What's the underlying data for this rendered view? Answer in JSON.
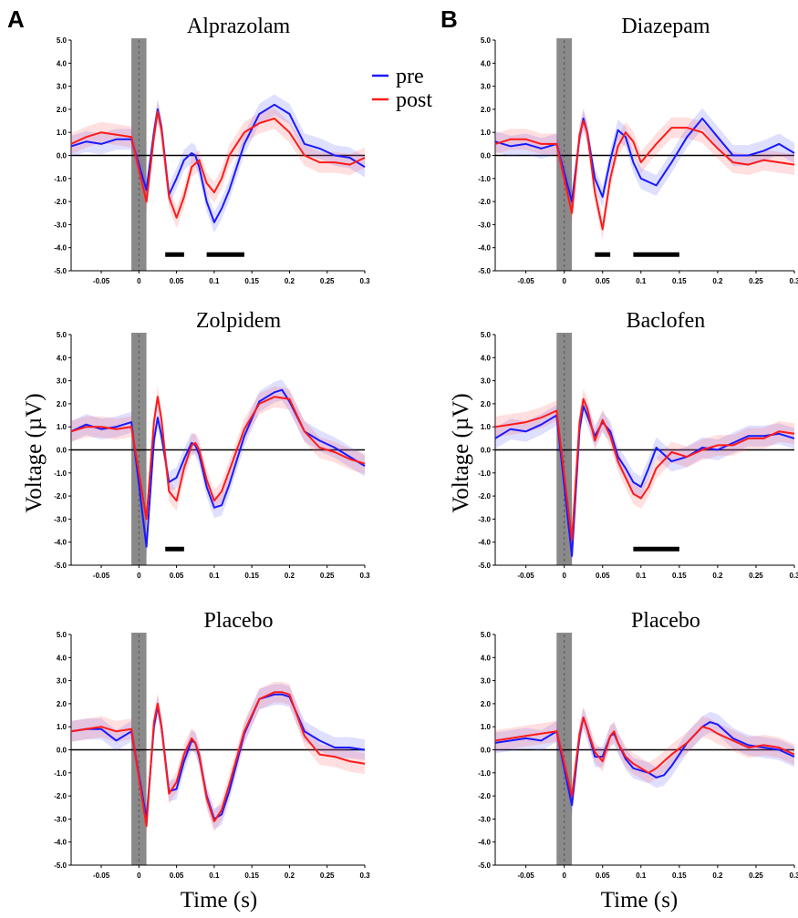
{
  "panel_labels": [
    "A",
    "B"
  ],
  "legend": {
    "pre_label": "pre",
    "post_label": "post",
    "pre_color": "#1a1aff",
    "post_color": "#ff1a1a"
  },
  "ylabel": "Voltage (µV)",
  "xlabel": "Time (s)",
  "x_tick_labels": [
    "-0.05",
    "0",
    "0.05",
    "0.1",
    "0.15",
    "0.2",
    "0.25",
    "0.3"
  ],
  "y_tick_labels": [
    "5.0",
    "4.0",
    "3.0",
    "2.0",
    "1.0",
    "0.0",
    "-1.0",
    "-2.0",
    "-3.0",
    "-4.0",
    "-5.0"
  ],
  "chart_data": [
    {
      "type": "line",
      "title": "Alprazolam",
      "xlim": [
        -0.09,
        0.3
      ],
      "ylim": [
        -5,
        5
      ],
      "stim_artifact": [
        -0.01,
        0.01
      ],
      "significance_bars": [
        [
          0.035,
          0.06
        ],
        [
          0.09,
          0.14
        ]
      ],
      "series": [
        {
          "name": "pre",
          "x": [
            -0.09,
            -0.07,
            -0.05,
            -0.03,
            -0.01,
            0.01,
            0.02,
            0.025,
            0.03,
            0.04,
            0.05,
            0.06,
            0.07,
            0.075,
            0.08,
            0.09,
            0.1,
            0.11,
            0.12,
            0.14,
            0.16,
            0.18,
            0.2,
            0.22,
            0.24,
            0.26,
            0.28,
            0.3
          ],
          "y": [
            0.4,
            0.6,
            0.5,
            0.7,
            0.7,
            -1.5,
            1.0,
            2.0,
            1.2,
            -1.7,
            -1.0,
            -0.2,
            0.1,
            0.0,
            -0.5,
            -2.0,
            -2.9,
            -2.3,
            -1.5,
            0.5,
            1.8,
            2.2,
            1.8,
            0.5,
            0.3,
            0.0,
            -0.1,
            -0.5
          ]
        },
        {
          "name": "post",
          "x": [
            -0.09,
            -0.07,
            -0.05,
            -0.03,
            -0.01,
            0.01,
            0.02,
            0.025,
            0.03,
            0.04,
            0.05,
            0.06,
            0.07,
            0.08,
            0.09,
            0.1,
            0.11,
            0.12,
            0.14,
            0.16,
            0.18,
            0.2,
            0.22,
            0.24,
            0.26,
            0.28,
            0.3
          ],
          "y": [
            0.5,
            0.8,
            1.0,
            0.9,
            0.8,
            -2.0,
            0.8,
            1.9,
            1.1,
            -1.8,
            -2.7,
            -1.8,
            -0.5,
            -0.2,
            -1.2,
            -1.6,
            -1.0,
            0.0,
            1.0,
            1.4,
            1.6,
            1.0,
            0.0,
            -0.3,
            -0.3,
            -0.4,
            -0.1
          ]
        }
      ]
    },
    {
      "type": "line",
      "title": "Diazepam",
      "xlim": [
        -0.09,
        0.3
      ],
      "ylim": [
        -5,
        5
      ],
      "stim_artifact": [
        -0.01,
        0.01
      ],
      "significance_bars": [
        [
          0.04,
          0.06
        ],
        [
          0.09,
          0.15
        ]
      ],
      "series": [
        {
          "name": "pre",
          "x": [
            -0.09,
            -0.07,
            -0.05,
            -0.03,
            -0.01,
            0.01,
            0.02,
            0.025,
            0.03,
            0.04,
            0.05,
            0.06,
            0.07,
            0.08,
            0.09,
            0.1,
            0.12,
            0.14,
            0.16,
            0.18,
            0.2,
            0.22,
            0.24,
            0.26,
            0.28,
            0.3
          ],
          "y": [
            0.6,
            0.4,
            0.5,
            0.3,
            0.5,
            -2.0,
            0.8,
            1.6,
            1.0,
            -1.0,
            -1.8,
            -0.2,
            1.1,
            0.8,
            -0.3,
            -1.0,
            -1.3,
            -0.3,
            0.8,
            1.6,
            0.8,
            0.0,
            0.0,
            0.2,
            0.5,
            0.1
          ]
        },
        {
          "name": "post",
          "x": [
            -0.09,
            -0.07,
            -0.05,
            -0.03,
            -0.01,
            0.01,
            0.02,
            0.025,
            0.03,
            0.04,
            0.05,
            0.06,
            0.07,
            0.08,
            0.09,
            0.1,
            0.12,
            0.14,
            0.16,
            0.18,
            0.2,
            0.22,
            0.24,
            0.26,
            0.28,
            0.3
          ],
          "y": [
            0.5,
            0.7,
            0.7,
            0.5,
            0.5,
            -2.5,
            0.9,
            1.5,
            1.0,
            -1.6,
            -3.2,
            -1.0,
            0.4,
            1.0,
            0.6,
            -0.3,
            0.5,
            1.2,
            1.2,
            1.0,
            0.3,
            -0.3,
            -0.4,
            -0.2,
            -0.3,
            -0.4
          ]
        }
      ]
    },
    {
      "type": "line",
      "title": "Zolpidem",
      "xlim": [
        -0.09,
        0.3
      ],
      "ylim": [
        -5,
        5
      ],
      "stim_artifact": [
        -0.01,
        0.01
      ],
      "significance_bars": [
        [
          0.035,
          0.06
        ]
      ],
      "series": [
        {
          "name": "pre",
          "x": [
            -0.09,
            -0.07,
            -0.05,
            -0.03,
            -0.01,
            0.01,
            0.02,
            0.025,
            0.03,
            0.04,
            0.05,
            0.06,
            0.07,
            0.075,
            0.08,
            0.09,
            0.1,
            0.11,
            0.12,
            0.14,
            0.16,
            0.18,
            0.19,
            0.2,
            0.22,
            0.24,
            0.26,
            0.28,
            0.3
          ],
          "y": [
            0.8,
            1.1,
            0.9,
            1.0,
            1.2,
            -4.2,
            0.4,
            1.4,
            0.6,
            -1.4,
            -1.2,
            -0.4,
            0.3,
            0.2,
            -0.2,
            -1.6,
            -2.5,
            -2.4,
            -1.5,
            0.6,
            2.1,
            2.5,
            2.6,
            2.1,
            0.8,
            0.4,
            0.1,
            -0.3,
            -0.7
          ]
        },
        {
          "name": "post",
          "x": [
            -0.09,
            -0.07,
            -0.05,
            -0.03,
            -0.01,
            0.01,
            0.02,
            0.025,
            0.03,
            0.04,
            0.05,
            0.06,
            0.07,
            0.075,
            0.08,
            0.09,
            0.1,
            0.11,
            0.12,
            0.14,
            0.16,
            0.18,
            0.2,
            0.22,
            0.24,
            0.26,
            0.28,
            0.3
          ],
          "y": [
            0.8,
            1.0,
            1.0,
            0.9,
            1.0,
            -3.0,
            1.2,
            2.3,
            1.3,
            -1.8,
            -2.2,
            -0.8,
            0.2,
            0.3,
            0.0,
            -1.3,
            -2.2,
            -1.8,
            -0.9,
            0.9,
            2.0,
            2.3,
            2.2,
            0.8,
            0.1,
            -0.1,
            -0.4,
            -0.6
          ]
        }
      ]
    },
    {
      "type": "line",
      "title": "Baclofen",
      "xlim": [
        -0.09,
        0.3
      ],
      "ylim": [
        -5,
        5
      ],
      "stim_artifact": [
        -0.01,
        0.01
      ],
      "significance_bars": [
        [
          0.09,
          0.15
        ]
      ],
      "series": [
        {
          "name": "pre",
          "x": [
            -0.09,
            -0.07,
            -0.05,
            -0.03,
            -0.01,
            0.01,
            0.02,
            0.025,
            0.03,
            0.04,
            0.05,
            0.06,
            0.07,
            0.08,
            0.09,
            0.1,
            0.11,
            0.12,
            0.14,
            0.16,
            0.18,
            0.2,
            0.22,
            0.24,
            0.26,
            0.28,
            0.3
          ],
          "y": [
            0.5,
            0.9,
            0.8,
            1.1,
            1.5,
            -4.6,
            0.9,
            1.9,
            1.5,
            0.6,
            1.2,
            0.8,
            -0.3,
            -0.8,
            -1.4,
            -1.6,
            -0.8,
            0.1,
            -0.5,
            -0.3,
            0.1,
            0.0,
            0.3,
            0.6,
            0.6,
            0.7,
            0.5
          ]
        },
        {
          "name": "post",
          "x": [
            -0.09,
            -0.07,
            -0.05,
            -0.03,
            -0.01,
            0.01,
            0.02,
            0.025,
            0.03,
            0.04,
            0.05,
            0.06,
            0.07,
            0.08,
            0.09,
            0.1,
            0.11,
            0.12,
            0.14,
            0.16,
            0.18,
            0.2,
            0.22,
            0.24,
            0.26,
            0.28,
            0.3
          ],
          "y": [
            1.0,
            1.1,
            1.2,
            1.4,
            1.7,
            -3.9,
            1.2,
            2.2,
            1.8,
            0.4,
            1.3,
            0.6,
            -0.5,
            -1.2,
            -1.9,
            -2.1,
            -1.6,
            -0.8,
            -0.1,
            -0.3,
            0.0,
            0.2,
            0.2,
            0.5,
            0.5,
            0.8,
            0.7
          ]
        }
      ]
    },
    {
      "type": "line",
      "title": "Placebo",
      "xlim": [
        -0.09,
        0.3
      ],
      "ylim": [
        -5,
        5
      ],
      "stim_artifact": [
        -0.01,
        0.01
      ],
      "significance_bars": [],
      "series": [
        {
          "name": "pre",
          "x": [
            -0.09,
            -0.07,
            -0.05,
            -0.03,
            -0.01,
            0.01,
            0.02,
            0.025,
            0.03,
            0.04,
            0.05,
            0.06,
            0.07,
            0.075,
            0.08,
            0.09,
            0.1,
            0.11,
            0.12,
            0.14,
            0.16,
            0.18,
            0.19,
            0.2,
            0.22,
            0.24,
            0.26,
            0.28,
            0.3
          ],
          "y": [
            0.8,
            0.9,
            0.9,
            0.4,
            0.8,
            -3.0,
            1.0,
            1.9,
            1.0,
            -1.8,
            -1.7,
            -0.5,
            0.4,
            0.3,
            -0.3,
            -2.0,
            -3.0,
            -2.8,
            -1.8,
            0.7,
            2.2,
            2.4,
            2.4,
            2.3,
            0.8,
            0.4,
            0.1,
            0.1,
            0.0
          ]
        },
        {
          "name": "post",
          "x": [
            -0.09,
            -0.07,
            -0.05,
            -0.03,
            -0.01,
            0.01,
            0.02,
            0.025,
            0.03,
            0.04,
            0.05,
            0.06,
            0.07,
            0.075,
            0.08,
            0.09,
            0.1,
            0.11,
            0.12,
            0.14,
            0.16,
            0.18,
            0.19,
            0.2,
            0.22,
            0.24,
            0.26,
            0.28,
            0.3
          ],
          "y": [
            0.8,
            0.9,
            1.0,
            0.8,
            0.9,
            -3.3,
            1.2,
            2.0,
            1.0,
            -1.9,
            -1.4,
            -0.2,
            0.5,
            0.3,
            -0.2,
            -2.1,
            -3.1,
            -2.6,
            -1.5,
            0.8,
            2.2,
            2.5,
            2.5,
            2.4,
            0.6,
            -0.2,
            -0.3,
            -0.5,
            -0.6
          ]
        }
      ]
    },
    {
      "type": "line",
      "title": "Placebo",
      "xlim": [
        -0.09,
        0.3
      ],
      "ylim": [
        -5,
        5
      ],
      "stim_artifact": [
        -0.01,
        0.01
      ],
      "significance_bars": [],
      "series": [
        {
          "name": "pre",
          "x": [
            -0.09,
            -0.07,
            -0.05,
            -0.03,
            -0.01,
            0.01,
            0.02,
            0.025,
            0.03,
            0.04,
            0.05,
            0.06,
            0.065,
            0.07,
            0.08,
            0.09,
            0.1,
            0.11,
            0.12,
            0.13,
            0.14,
            0.16,
            0.18,
            0.19,
            0.2,
            0.22,
            0.24,
            0.26,
            0.28,
            0.3
          ],
          "y": [
            0.3,
            0.4,
            0.5,
            0.4,
            0.8,
            -2.4,
            0.6,
            1.4,
            0.9,
            -0.3,
            -0.3,
            0.6,
            0.7,
            0.3,
            -0.4,
            -0.8,
            -0.9,
            -1.0,
            -1.2,
            -1.1,
            -0.7,
            0.3,
            1.0,
            1.2,
            1.1,
            0.5,
            0.2,
            0.1,
            0.0,
            -0.3
          ]
        },
        {
          "name": "post",
          "x": [
            -0.09,
            -0.07,
            -0.05,
            -0.03,
            -0.01,
            0.01,
            0.02,
            0.025,
            0.03,
            0.04,
            0.05,
            0.06,
            0.065,
            0.07,
            0.08,
            0.09,
            0.1,
            0.11,
            0.12,
            0.13,
            0.14,
            0.16,
            0.18,
            0.19,
            0.2,
            0.22,
            0.24,
            0.26,
            0.28,
            0.3
          ],
          "y": [
            0.4,
            0.5,
            0.6,
            0.7,
            0.8,
            -2.0,
            0.7,
            1.4,
            0.9,
            -0.1,
            -0.5,
            0.6,
            0.8,
            0.3,
            -0.3,
            -0.6,
            -0.8,
            -1.0,
            -0.8,
            -0.5,
            -0.2,
            0.3,
            1.0,
            0.9,
            0.7,
            0.4,
            0.1,
            0.2,
            0.1,
            -0.2
          ]
        }
      ]
    }
  ]
}
